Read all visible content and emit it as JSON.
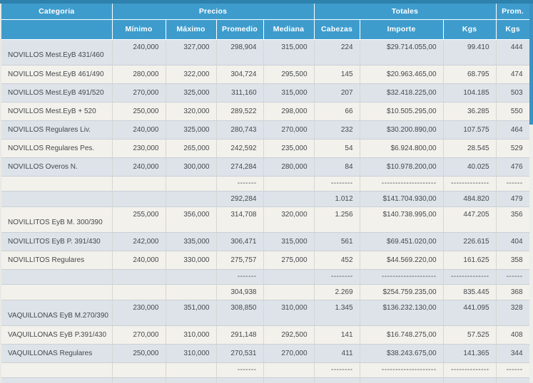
{
  "colors": {
    "header_blue": "#3e9ccd",
    "top_bar_blue": "#2d81ac",
    "row_gray": "#dde3e9",
    "row_cream": "#f3f1eb",
    "grid_line": "#c9d0d6",
    "grid_line_v": "#d5d7d3",
    "text": "#43484d",
    "scrollbar_thumb": "#3992c4",
    "scrollbar_track": "#eeeeea"
  },
  "chart_data": {
    "type": "table",
    "header": {
      "categoria": "Categoria",
      "precios": "Precios",
      "totales": "Totales",
      "prom": "Prom.",
      "sub": [
        "Mínimo",
        "Máximo",
        "Promedio",
        "Mediana",
        "Cabezas",
        "Importe",
        "Kgs",
        "Kgs"
      ]
    },
    "dashes": {
      "avg": "-------",
      "heads": "--------",
      "amount": "--------------------",
      "kgs": "--------------",
      "prom": "------"
    },
    "rows": [
      {
        "type": "data",
        "tall": true,
        "category": "NOVILLOS Mest.EyB 431/460",
        "min": "240,000",
        "max": "327,000",
        "avg": "298,904",
        "med": "315,000",
        "heads": "224",
        "amount": "$29.714.055,00",
        "kgs": "99.410",
        "prom": "444"
      },
      {
        "type": "data",
        "category": "NOVILLOS Mest.EyB 461/490",
        "min": "280,000",
        "max": "322,000",
        "avg": "304,724",
        "med": "295,500",
        "heads": "145",
        "amount": "$20.963.465,00",
        "kgs": "68.795",
        "prom": "474"
      },
      {
        "type": "data",
        "category": "NOVILLOS Mest.EyB 491/520",
        "min": "270,000",
        "max": "325,000",
        "avg": "311,160",
        "med": "315,000",
        "heads": "207",
        "amount": "$32.418.225,00",
        "kgs": "104.185",
        "prom": "503"
      },
      {
        "type": "data",
        "category": "NOVILLOS Mest.EyB + 520",
        "min": "250,000",
        "max": "320,000",
        "avg": "289,522",
        "med": "298,000",
        "heads": "66",
        "amount": "$10.505.295,00",
        "kgs": "36.285",
        "prom": "550"
      },
      {
        "type": "data",
        "category": "NOVILLOS Regulares Liv.",
        "min": "240,000",
        "max": "325,000",
        "avg": "280,743",
        "med": "270,000",
        "heads": "232",
        "amount": "$30.200.890,00",
        "kgs": "107.575",
        "prom": "464"
      },
      {
        "type": "data",
        "category": "NOVILLOS Regulares Pes.",
        "min": "230,000",
        "max": "265,000",
        "avg": "242,592",
        "med": "235,000",
        "heads": "54",
        "amount": "$6.924.800,00",
        "kgs": "28.545",
        "prom": "529"
      },
      {
        "type": "data",
        "category": "NOVILLOS Overos N.",
        "min": "240,000",
        "max": "300,000",
        "avg": "274,284",
        "med": "280,000",
        "heads": "84",
        "amount": "$10.978.200,00",
        "kgs": "40.025",
        "prom": "476"
      },
      {
        "type": "dashes"
      },
      {
        "type": "summary",
        "avg": "292,284",
        "heads": "1.012",
        "amount": "$141.704.930,00",
        "kgs": "484.820",
        "prom": "479"
      },
      {
        "type": "data",
        "tall": true,
        "category": "NOVILLITOS EyB M. 300/390",
        "min": "255,000",
        "max": "356,000",
        "avg": "314,708",
        "med": "320,000",
        "heads": "1.256",
        "amount": "$140.738.995,00",
        "kgs": "447.205",
        "prom": "356"
      },
      {
        "type": "data",
        "category": "NOVILLITOS EyB P. 391/430",
        "min": "242,000",
        "max": "335,000",
        "avg": "306,471",
        "med": "315,000",
        "heads": "561",
        "amount": "$69.451.020,00",
        "kgs": "226.615",
        "prom": "404"
      },
      {
        "type": "data",
        "category": "NOVILLITOS Regulares",
        "min": "240,000",
        "max": "330,000",
        "avg": "275,757",
        "med": "275,000",
        "heads": "452",
        "amount": "$44.569.220,00",
        "kgs": "161.625",
        "prom": "358"
      },
      {
        "type": "dashes"
      },
      {
        "type": "summary",
        "avg": "304,938",
        "heads": "2.269",
        "amount": "$254.759.235,00",
        "kgs": "835.445",
        "prom": "368"
      },
      {
        "type": "data",
        "tall": true,
        "category": "VAQUILLONAS EyB M.270/390",
        "min": "230,000",
        "max": "351,000",
        "avg": "308,850",
        "med": "310,000",
        "heads": "1.345",
        "amount": "$136.232.130,00",
        "kgs": "441.095",
        "prom": "328"
      },
      {
        "type": "data",
        "category": "VAQUILLONAS EyB P.391/430",
        "min": "270,000",
        "max": "310,000",
        "avg": "291,148",
        "med": "292,500",
        "heads": "141",
        "amount": "$16.748.275,00",
        "kgs": "57.525",
        "prom": "408"
      },
      {
        "type": "data",
        "category": "VAQUILLONAS Regulares",
        "min": "250,000",
        "max": "310,000",
        "avg": "270,531",
        "med": "270,000",
        "heads": "411",
        "amount": "$38.243.675,00",
        "kgs": "141.365",
        "prom": "344"
      },
      {
        "type": "dashes"
      },
      {
        "type": "partial"
      }
    ]
  }
}
